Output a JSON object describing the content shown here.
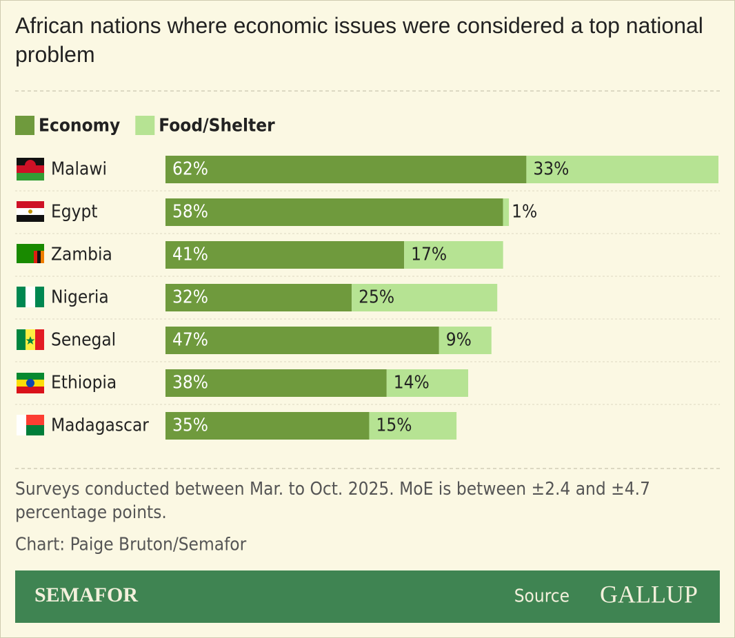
{
  "chart_data": {
    "type": "stacked-bar-horizontal",
    "title": "African nations where economic issues were considered a top national problem",
    "categories": [
      "Malawi",
      "Egypt",
      "Zambia",
      "Nigeria",
      "Senegal",
      "Ethiopia",
      "Madagascar"
    ],
    "series": [
      {
        "name": "Economy",
        "color": "#6f9a3d",
        "values": [
          62,
          58,
          41,
          32,
          47,
          38,
          35
        ],
        "value_labels": [
          "62%",
          "58%",
          "41%",
          "32%",
          "47%",
          "38%",
          "35%"
        ]
      },
      {
        "name": "Food/Shelter",
        "color": "#b6e393",
        "values": [
          33,
          1,
          17,
          25,
          9,
          14,
          15
        ],
        "value_labels": [
          "33%",
          "1%",
          "17%",
          "25%",
          "9%",
          "14%",
          "15%"
        ]
      }
    ],
    "note": "Surveys conducted between Mar. to Oct. 2025. MoE is between ±2.4 and ±4.7 percentage points.",
    "credit": "Chart: Paige Bruton/Semafor",
    "brand": "SEMAFOR",
    "source_label": "Source",
    "source": "GALLUP"
  }
}
